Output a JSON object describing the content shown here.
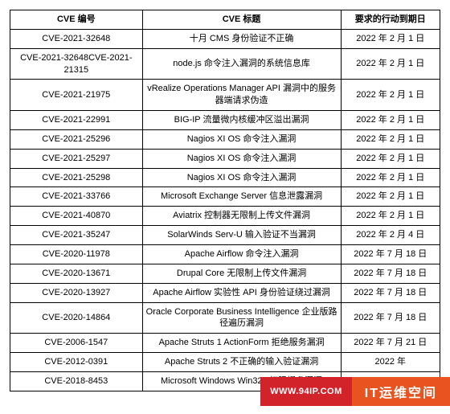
{
  "table": {
    "headers": {
      "cve_id": "CVE 编号",
      "cve_title": "CVE 标题",
      "due_date": "要求的行动到期日"
    },
    "rows": [
      {
        "id": "CVE-2021-32648",
        "title": "十月 CMS 身份验证不正确",
        "date": "2022 年 2 月 1 日"
      },
      {
        "id": "CVE-2021-32648CVE-2021-21315",
        "title": "node.js 命令注入漏洞的系统信息库",
        "date": "2022 年 2 月 1 日"
      },
      {
        "id": "CVE-2021-21975",
        "title": "vRealize Operations Manager API 漏洞中的服务器端请求伪造",
        "date": "2022 年 2 月 1 日"
      },
      {
        "id": "CVE-2021-22991",
        "title": "BIG-IP 流量微内核缓冲区溢出漏洞",
        "date": "2022 年 2 月 1 日"
      },
      {
        "id": "CVE-2021-25296",
        "title": "Nagios XI OS 命令注入漏洞",
        "date": "2022 年 2 月 1 日"
      },
      {
        "id": "CVE-2021-25297",
        "title": "Nagios XI OS 命令注入漏洞",
        "date": "2022 年 2 月 1 日"
      },
      {
        "id": "CVE-2021-25298",
        "title": "Nagios XI OS 命令注入漏洞",
        "date": "2022 年 2 月 1 日"
      },
      {
        "id": "CVE-2021-33766",
        "title": "Microsoft Exchange Server 信息泄露漏洞",
        "date": "2022 年 2 月 1 日"
      },
      {
        "id": "CVE-2021-40870",
        "title": "Aviatrix 控制器无限制上传文件漏洞",
        "date": "2022 年 2 月 1 日"
      },
      {
        "id": "CVE-2021-35247",
        "title": "SolarWinds Serv-U 输入验证不当漏洞",
        "date": "2022 年 2 月 4 日"
      },
      {
        "id": "CVE-2020-11978",
        "title": "Apache Airflow 命令注入漏洞",
        "date": "2022 年 7 月 18 日"
      },
      {
        "id": "CVE-2020-13671",
        "title": "Drupal Core 无限制上传文件漏洞",
        "date": "2022 年 7 月 18 日"
      },
      {
        "id": "CVE-2020-13927",
        "title": "Apache Airflow 实验性 API 身份验证绕过漏洞",
        "date": "2022 年 7 月 18 日"
      },
      {
        "id": "CVE-2020-14864",
        "title": "Oracle Corporate Business Intelligence 企业版路径遍历漏洞",
        "date": "2022 年 7 月 18 日"
      },
      {
        "id": "CVE-2006-1547",
        "title": "Apache Struts 1 ActionForm 拒绝服务漏洞",
        "date": "2022 年 7 月 21 日"
      },
      {
        "id": "CVE-2012-0391",
        "title": "Apache Struts 2 不正确的输入验证漏洞",
        "date": "2022 年"
      },
      {
        "id": "CVE-2018-8453",
        "title": "Microsoft Windows Win32k 权限提升漏洞",
        "date": ""
      }
    ]
  },
  "watermark": {
    "left": "WWW.94IP.COM",
    "right": "IT运维空间"
  },
  "colors": {
    "border": "#000000",
    "wm_left_bg": "#d2232a",
    "wm_right_bg": "#e9531f",
    "wm_text": "#ffffff",
    "page_bg": "#ffffff"
  }
}
